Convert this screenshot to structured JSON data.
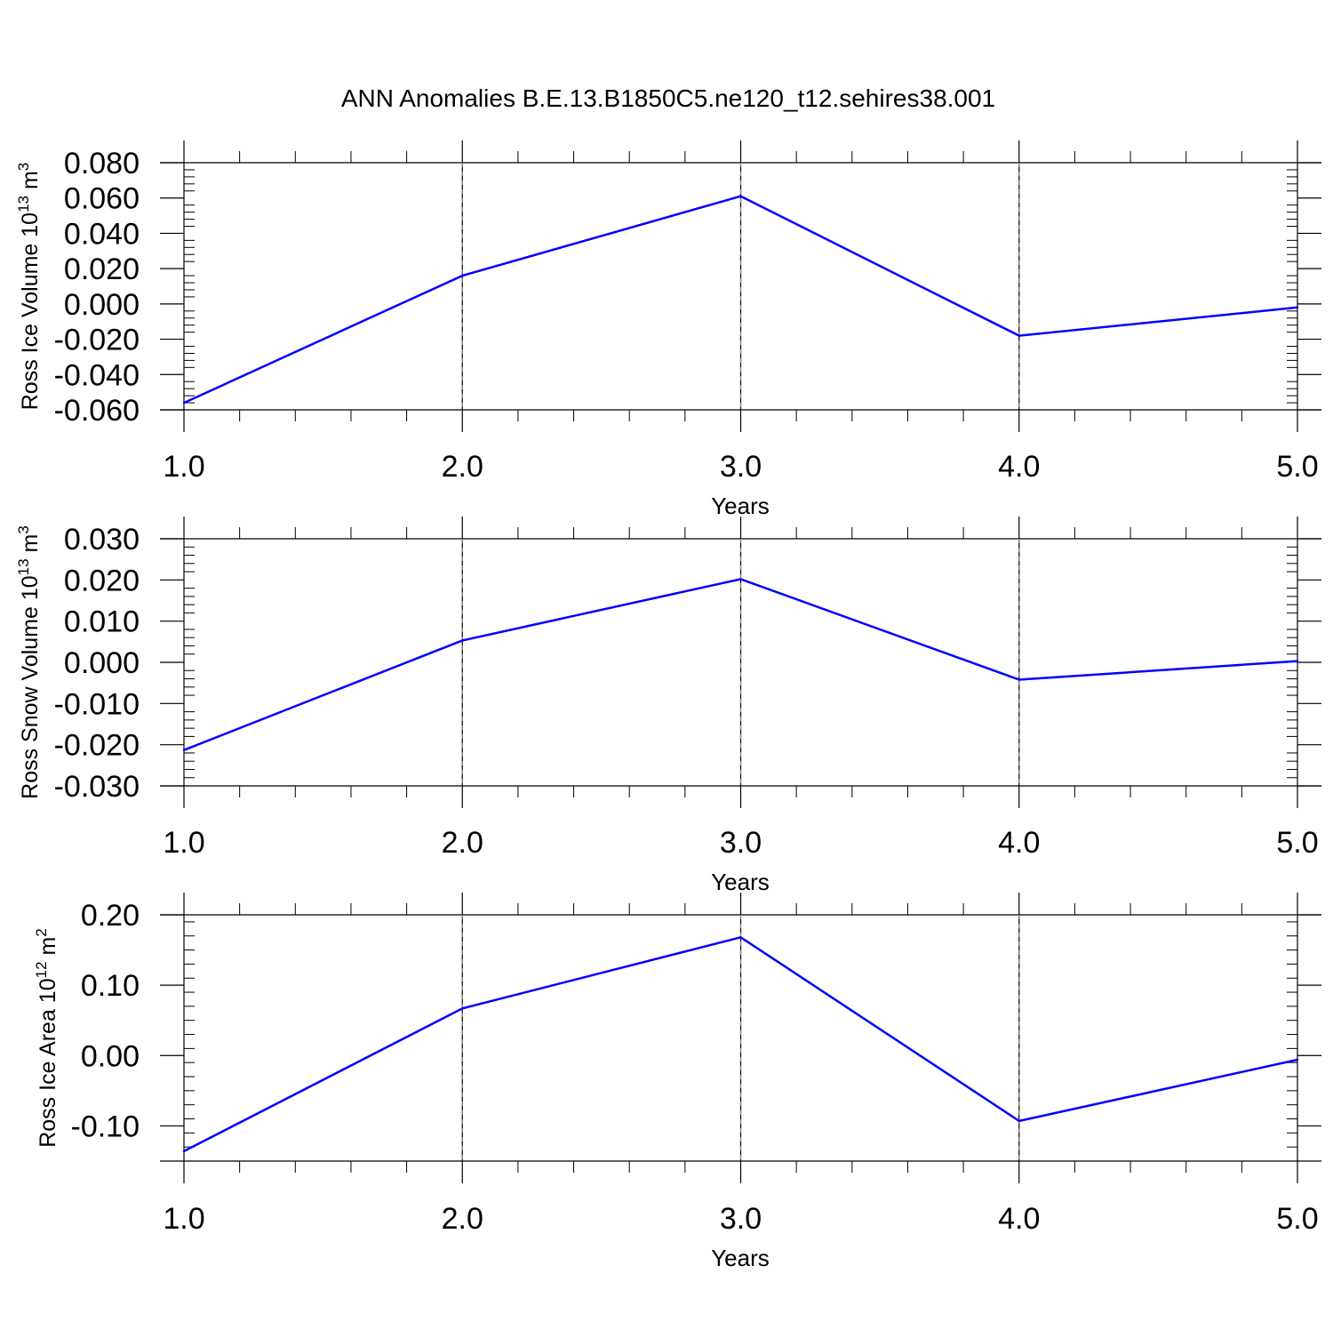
{
  "title": "ANN Anomalies B.E.13.B1850C5.ne120_t12.sehires38.001",
  "chart_data": [
    {
      "type": "line",
      "ylabel": "Ross Ice Volume 10^13 m^3",
      "ylabel_base": "Ross Ice Volume 10",
      "ylabel_exp": "13",
      "ylabel_unit": "m",
      "ylabel_unit_exp": "3",
      "xlabel": "Years",
      "xlim": [
        1.0,
        5.0
      ],
      "xticks": [
        "1.0",
        "2.0",
        "3.0",
        "4.0",
        "5.0"
      ],
      "ylim": [
        -0.06,
        0.08
      ],
      "yticks": [
        "-0.060",
        "-0.040",
        "-0.020",
        "0.000",
        "0.020",
        "0.040",
        "0.060",
        "0.080"
      ],
      "x": [
        1,
        2,
        3,
        4,
        5
      ],
      "y": [
        -0.056,
        0.016,
        0.061,
        -0.018,
        -0.002
      ],
      "color": "#0000ff",
      "grid": "vertical dashed at major x ticks"
    },
    {
      "type": "line",
      "ylabel": "Ross Snow Volume 10^13 m^3",
      "ylabel_base": "Ross Snow Volume 10",
      "ylabel_exp": "13",
      "ylabel_unit": "m",
      "ylabel_unit_exp": "3",
      "xlabel": "Years",
      "xlim": [
        1.0,
        5.0
      ],
      "xticks": [
        "1.0",
        "2.0",
        "3.0",
        "4.0",
        "5.0"
      ],
      "ylim": [
        -0.03,
        0.03
      ],
      "yticks": [
        "-0.030",
        "-0.020",
        "-0.010",
        "0.000",
        "0.010",
        "0.020",
        "0.030"
      ],
      "x": [
        1,
        2,
        3,
        4,
        5
      ],
      "y": [
        -0.0213,
        0.0053,
        0.0202,
        -0.0042,
        0.0003
      ],
      "color": "#0000ff",
      "grid": "vertical dashed at major x ticks"
    },
    {
      "type": "line",
      "ylabel": "Ross Ice Area 10^12 m^2",
      "ylabel_base": "Ross Ice Area 10",
      "ylabel_exp": "12",
      "ylabel_unit": "m",
      "ylabel_unit_exp": "2",
      "xlabel": "Years",
      "xlim": [
        1.0,
        5.0
      ],
      "xticks": [
        "1.0",
        "2.0",
        "3.0",
        "4.0",
        "5.0"
      ],
      "ylim": [
        -0.15,
        0.2
      ],
      "yticks": [
        "-0.10",
        "0.00",
        "0.10",
        "0.20"
      ],
      "x": [
        1,
        2,
        3,
        4,
        5
      ],
      "y": [
        -0.136,
        0.067,
        0.168,
        -0.093,
        -0.006
      ],
      "color": "#0000ff",
      "grid": "vertical dashed at major x ticks"
    }
  ]
}
